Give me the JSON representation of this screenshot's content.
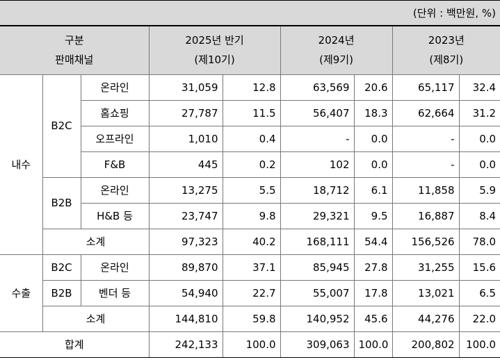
{
  "unit": "(단위 : 백만원, %)",
  "header": {
    "category": "구분",
    "channel": "판매채널",
    "periods": [
      {
        "year": "2025년 반기",
        "term": "(제10기)"
      },
      {
        "year": "2024년",
        "term": "(제9기)"
      },
      {
        "year": "2023년",
        "term": "(제8기)"
      }
    ]
  },
  "groups": {
    "domestic": "내수",
    "export": "수출",
    "b2c": "B2C",
    "b2b": "B2B",
    "subtotal": "소계",
    "total": "합계"
  },
  "rows": [
    {
      "channel": "온라인",
      "v": [
        "31,059",
        "12.8",
        "63,569",
        "20.6",
        "65,117",
        "32.4"
      ]
    },
    {
      "channel": "홈쇼핑",
      "v": [
        "27,787",
        "11.5",
        "56,407",
        "18.3",
        "62,664",
        "31.2"
      ]
    },
    {
      "channel": "오프라인",
      "v": [
        "1,010",
        "0.4",
        "-",
        "0.0",
        "-",
        "0.0"
      ]
    },
    {
      "channel": "F&B",
      "v": [
        "445",
        "0.2",
        "102",
        "0.0",
        "-",
        "0.0"
      ]
    },
    {
      "channel": "온라인",
      "v": [
        "13,275",
        "5.5",
        "18,712",
        "6.1",
        "11,858",
        "5.9"
      ]
    },
    {
      "channel": "H&B 등",
      "v": [
        "23,747",
        "9.8",
        "29,321",
        "9.5",
        "16,887",
        "8.4"
      ]
    },
    {
      "channel": "소계",
      "v": [
        "97,323",
        "40.2",
        "168,111",
        "54.4",
        "156,526",
        "78.0"
      ]
    },
    {
      "channel": "온라인",
      "v": [
        "89,870",
        "37.1",
        "85,945",
        "27.8",
        "31,255",
        "15.6"
      ]
    },
    {
      "channel": "벤더 등",
      "v": [
        "54,940",
        "22.7",
        "55,007",
        "17.8",
        "13,021",
        "6.5"
      ]
    },
    {
      "channel": "소계",
      "v": [
        "144,810",
        "59.8",
        "140,952",
        "45.6",
        "44,276",
        "22.0"
      ]
    },
    {
      "channel": "합계",
      "v": [
        "242,133",
        "100.0",
        "309,063",
        "100.0",
        "200,802",
        "100.0"
      ]
    }
  ]
}
